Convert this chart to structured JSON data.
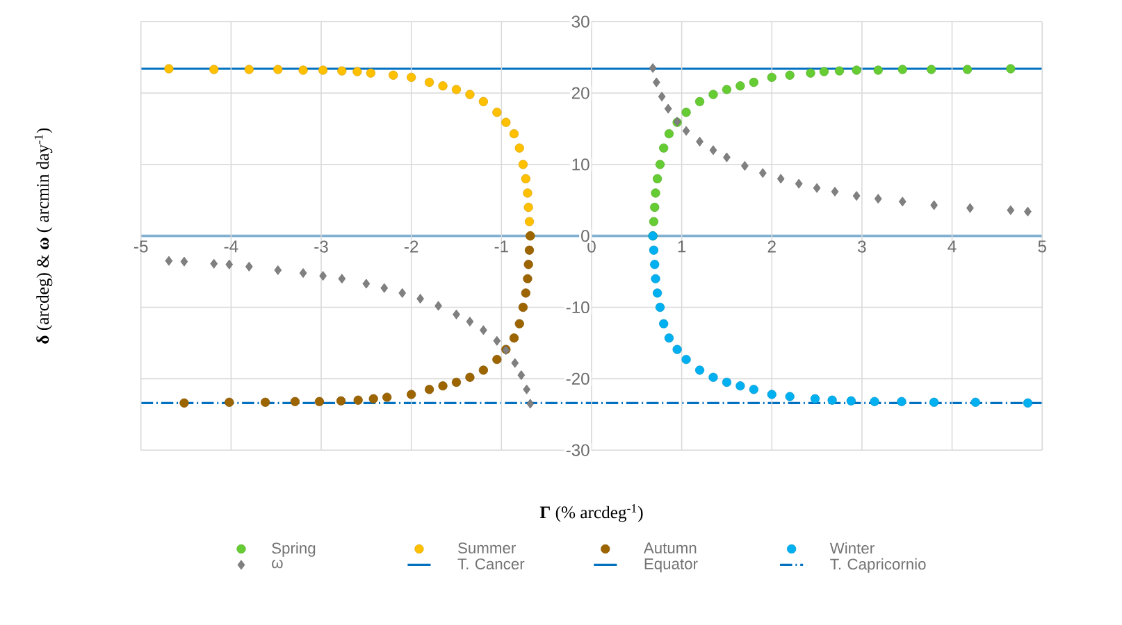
{
  "chart_data": {
    "type": "scatter",
    "xlabel": "**Γ** (% arcdeg$^{-1}$)",
    "ylabel": "**δ** (arcdeg)  &  **ω** ( arcmin day$^{-1}$)",
    "xlim": [
      -5,
      5
    ],
    "ylim": [
      -30,
      30
    ],
    "xticks": [
      -5,
      -4,
      -3,
      -2,
      -1,
      0,
      1,
      2,
      3,
      4,
      5
    ],
    "yticks": [
      -30,
      -20,
      -10,
      0,
      10,
      20,
      30
    ],
    "grid": true,
    "legend": "bottom",
    "marker": "circle",
    "series": [
      {
        "name": "Spring",
        "color": "#66cc33",
        "x": [
          0.68,
          0.69,
          0.7,
          0.71,
          0.73,
          0.76,
          0.8,
          0.86,
          0.95,
          1.05,
          1.2,
          1.35,
          1.5,
          1.65,
          1.8,
          2.0,
          2.2,
          2.43,
          2.58,
          2.75,
          2.94,
          3.18,
          3.45,
          3.77,
          4.17,
          4.65
        ],
        "values": [
          0,
          2,
          4,
          6,
          8,
          10,
          12.3,
          14.3,
          15.9,
          17.3,
          18.8,
          19.8,
          20.5,
          21.0,
          21.5,
          22.2,
          22.5,
          22.8,
          23.0,
          23.1,
          23.2,
          23.2,
          23.3,
          23.3,
          23.3,
          23.4
        ]
      },
      {
        "name": "Summer",
        "color": "#ffc000",
        "x": [
          -0.68,
          -0.69,
          -0.7,
          -0.71,
          -0.73,
          -0.76,
          -0.8,
          -0.86,
          -0.95,
          -1.05,
          -1.2,
          -1.35,
          -1.5,
          -1.65,
          -1.8,
          -2.0,
          -2.2,
          -2.45,
          -2.6,
          -2.77,
          -2.98,
          -3.2,
          -3.48,
          -3.8,
          -4.19,
          -4.69
        ],
        "values": [
          0,
          2,
          4,
          6,
          8,
          10,
          12.3,
          14.3,
          15.9,
          17.3,
          18.8,
          19.8,
          20.5,
          21.0,
          21.5,
          22.2,
          22.5,
          22.8,
          23.0,
          23.1,
          23.2,
          23.2,
          23.3,
          23.3,
          23.3,
          23.4
        ]
      },
      {
        "name": "Autumn",
        "color": "#9c6500",
        "x": [
          -0.68,
          -0.69,
          -0.7,
          -0.71,
          -0.73,
          -0.76,
          -0.8,
          -0.86,
          -0.95,
          -1.05,
          -1.2,
          -1.35,
          -1.5,
          -1.65,
          -1.8,
          -2.0,
          -2.27,
          -2.42,
          -2.59,
          -2.78,
          -3.02,
          -3.29,
          -3.62,
          -4.02,
          -4.52
        ],
        "values": [
          0,
          -2,
          -4,
          -6,
          -8,
          -10,
          -12.3,
          -14.3,
          -15.9,
          -17.3,
          -18.8,
          -19.8,
          -20.5,
          -21.0,
          -21.5,
          -22.2,
          -22.6,
          -22.8,
          -23.0,
          -23.1,
          -23.2,
          -23.2,
          -23.3,
          -23.3,
          -23.4
        ]
      },
      {
        "name": "Winter",
        "color": "#00b0f0",
        "x": [
          0.68,
          0.69,
          0.7,
          0.71,
          0.73,
          0.76,
          0.8,
          0.86,
          0.95,
          1.05,
          1.2,
          1.35,
          1.5,
          1.65,
          1.8,
          2.0,
          2.2,
          2.48,
          2.67,
          2.88,
          3.14,
          3.44,
          3.8,
          4.26,
          4.84
        ],
        "values": [
          0,
          -2,
          -4,
          -6,
          -8,
          -10,
          -12.3,
          -14.3,
          -15.9,
          -17.3,
          -18.8,
          -19.8,
          -20.5,
          -21.0,
          -21.5,
          -22.2,
          -22.5,
          -22.8,
          -23.0,
          -23.1,
          -23.2,
          -23.2,
          -23.3,
          -23.3,
          -23.4
        ]
      },
      {
        "name": "ω",
        "color": "#808080",
        "marker": "diamond",
        "x": [
          -0.68,
          -0.72,
          -0.78,
          -0.85,
          -0.95,
          -1.05,
          -1.2,
          -1.35,
          -1.5,
          -1.7,
          -1.9,
          -2.1,
          -2.3,
          -2.5,
          -2.77,
          -2.98,
          -3.2,
          -3.48,
          -3.8,
          -4.02,
          -4.19,
          -4.52,
          -4.69,
          0.68,
          0.72,
          0.78,
          0.85,
          0.95,
          1.05,
          1.2,
          1.35,
          1.5,
          1.7,
          1.9,
          2.1,
          2.3,
          2.5,
          2.7,
          2.94,
          3.18,
          3.45,
          3.8,
          4.2,
          4.65,
          4.84
        ],
        "values": [
          -23.5,
          -21.5,
          -19.5,
          -17.8,
          -16,
          -14.7,
          -13.2,
          -12,
          -11,
          -9.8,
          -8.8,
          -8.0,
          -7.3,
          -6.7,
          -6.0,
          -5.6,
          -5.2,
          -4.8,
          -4.3,
          -4.0,
          -3.9,
          -3.6,
          -3.5,
          23.5,
          21.5,
          19.5,
          17.8,
          16,
          14.7,
          13.2,
          12,
          11,
          9.8,
          8.8,
          8.0,
          7.3,
          6.7,
          6.2,
          5.6,
          5.2,
          4.8,
          4.3,
          3.9,
          3.6,
          3.4
        ]
      },
      {
        "name": "T. Cancer",
        "type": "line",
        "marker": "none",
        "line_style": "solid",
        "color": "#0070c0",
        "x": [
          -5,
          5
        ],
        "values": [
          23.4,
          23.4
        ]
      },
      {
        "name": "Equator",
        "type": "line",
        "marker": "none",
        "line_style": "solid",
        "color": "#0070c0",
        "x": [
          -5,
          5
        ],
        "values": [
          0,
          0
        ]
      },
      {
        "name": "T. Capricornio",
        "type": "line",
        "marker": "none",
        "line_style": "dashed",
        "color": "#0070c0",
        "x": [
          -5,
          5
        ],
        "values": [
          -23.4,
          -23.4
        ]
      }
    ]
  }
}
